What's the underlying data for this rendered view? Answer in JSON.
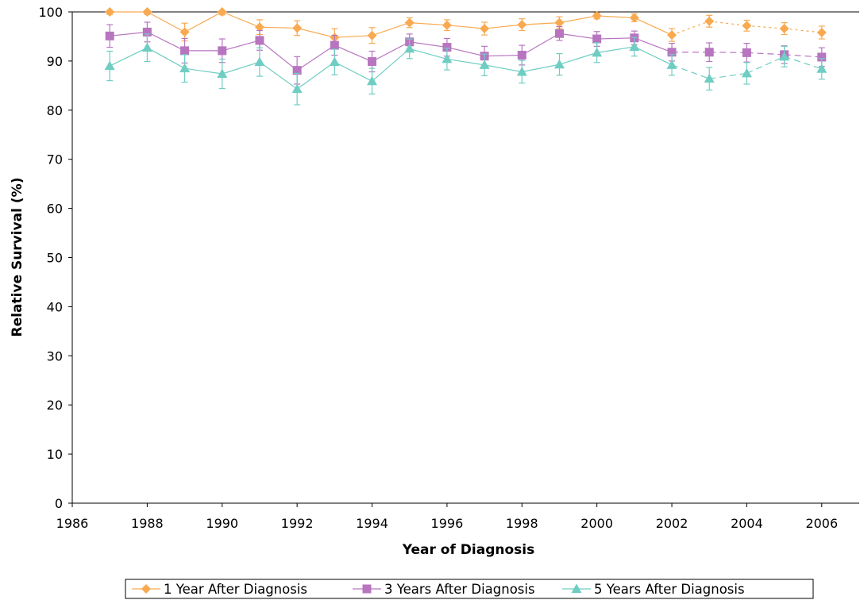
{
  "chart_data": {
    "type": "line",
    "xlabel": "Year of Diagnosis",
    "ylabel": "Relative Survival (%)",
    "xlim": [
      1986,
      2007
    ],
    "ylim": [
      0,
      100
    ],
    "x_ticks": [
      1986,
      1988,
      1990,
      1992,
      1994,
      1996,
      1998,
      2000,
      2002,
      2004,
      2006
    ],
    "y_ticks": [
      0,
      10,
      20,
      30,
      40,
      50,
      60,
      70,
      80,
      90,
      100
    ],
    "grid": false,
    "legend_position": "bottom",
    "series": [
      {
        "name": "1 Year After Diagnosis",
        "color": "#F9A94F",
        "marker": "diamond",
        "x": [
          1987,
          1988,
          1989,
          1990,
          1991,
          1992,
          1993,
          1994,
          1995,
          1996,
          1997,
          1998,
          1999,
          2000,
          2001,
          2002,
          2003,
          2004,
          2005,
          2006
        ],
        "y": [
          100,
          100,
          95.9,
          100,
          96.9,
          96.7,
          94.8,
          95.2,
          97.8,
          97.3,
          96.6,
          97.4,
          97.8,
          99.2,
          98.8,
          95.3,
          98.1,
          97.2,
          96.6,
          95.8
        ],
        "err": [
          0.5,
          0.5,
          1.8,
          0.6,
          1.5,
          1.5,
          1.8,
          1.6,
          1.0,
          1.1,
          1.3,
          1.2,
          1.2,
          0.6,
          0.8,
          1.3,
          1.2,
          1.1,
          1.2,
          1.3
        ],
        "dotted_from": 2002
      },
      {
        "name": "3 Years After Diagnosis",
        "color": "#B775C0",
        "marker": "square",
        "x": [
          1987,
          1988,
          1989,
          1990,
          1991,
          1992,
          1993,
          1994,
          1995,
          1996,
          1997,
          1998,
          1999,
          2000,
          2001,
          2002,
          2003,
          2004,
          2005,
          2006
        ],
        "y": [
          95.1,
          95.9,
          92.1,
          92.1,
          94.2,
          88.1,
          93.2,
          89.9,
          93.9,
          92.8,
          91.0,
          91.2,
          95.6,
          94.5,
          94.7,
          91.8,
          91.8,
          91.7,
          91.3,
          90.8
        ],
        "err": [
          2.3,
          2.0,
          2.5,
          2.4,
          2.0,
          2.8,
          2.0,
          2.1,
          1.6,
          1.8,
          2.0,
          2.0,
          1.4,
          1.5,
          1.4,
          1.8,
          1.9,
          1.9,
          1.8,
          1.9
        ],
        "dotted_from": 2002
      },
      {
        "name": "5 Years After Diagnosis",
        "color": "#6FCDC2",
        "marker": "triangle",
        "x": [
          1987,
          1988,
          1989,
          1990,
          1991,
          1992,
          1993,
          1994,
          1995,
          1996,
          1997,
          1998,
          1999,
          2000,
          2001,
          2002,
          2003,
          2004,
          2005,
          2006
        ],
        "y": [
          89.0,
          92.7,
          88.5,
          87.4,
          89.8,
          84.3,
          89.8,
          85.9,
          92.5,
          90.4,
          89.2,
          87.8,
          89.3,
          91.7,
          92.9,
          89.2,
          86.4,
          87.5,
          90.9,
          88.4
        ],
        "err": [
          3.0,
          2.8,
          2.8,
          3.0,
          2.9,
          3.2,
          2.6,
          2.6,
          2.0,
          2.2,
          2.2,
          2.3,
          2.2,
          2.0,
          1.9,
          2.1,
          2.3,
          2.2,
          2.1,
          2.1
        ],
        "dotted_from": 2002
      }
    ]
  }
}
